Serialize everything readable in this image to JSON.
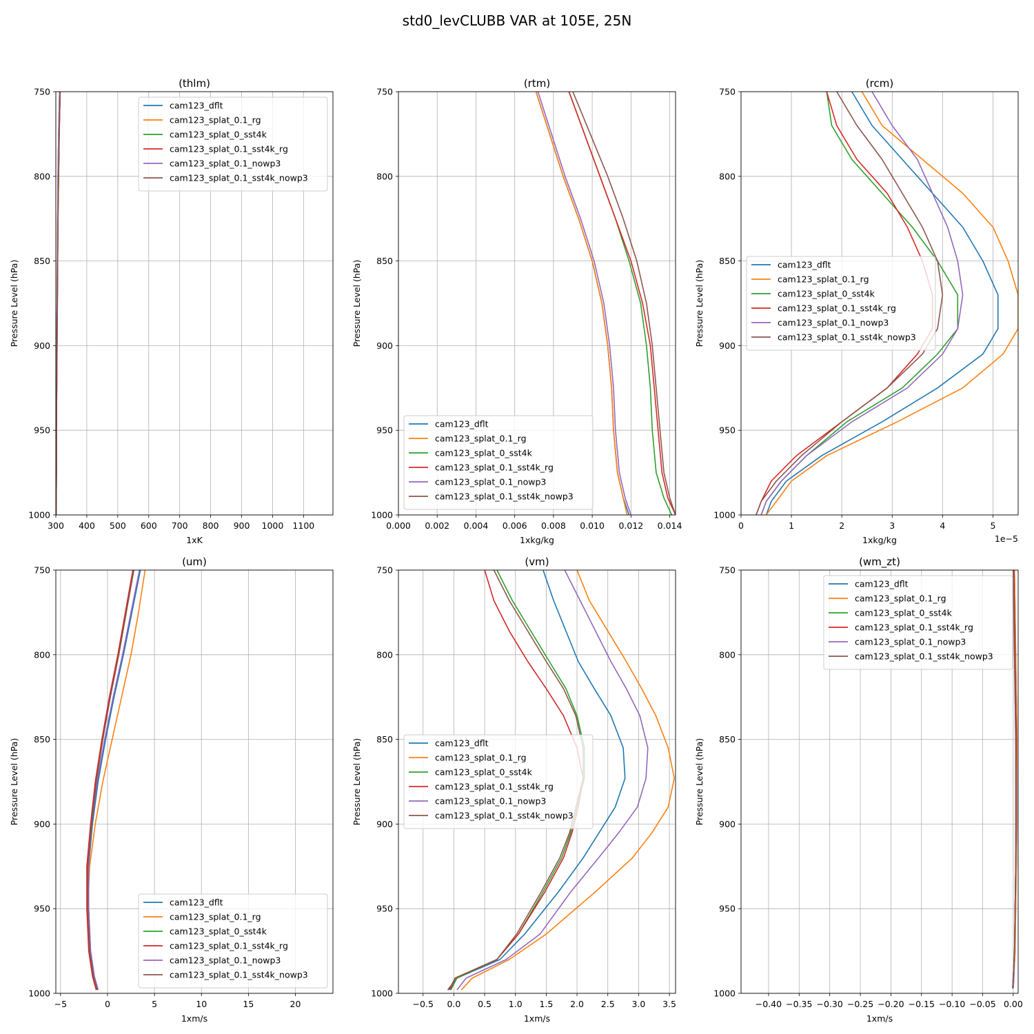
{
  "figure_title": "std0_levCLUBB VAR at 105E, 25N",
  "colors": [
    "#1f77b4",
    "#ff7f0e",
    "#2ca02c",
    "#d62728",
    "#9467bd",
    "#8c564b"
  ],
  "chart_data": [
    {
      "type": "line",
      "title": "(thlm)",
      "xlabel": "1xK",
      "ylabel": "Pressure Level (hPa)",
      "xlim": [
        300,
        1195
      ],
      "ylim": [
        1000,
        750
      ],
      "xticks": [
        300,
        400,
        500,
        600,
        700,
        800,
        900,
        1000,
        1100
      ],
      "yticks": [
        750,
        800,
        850,
        900,
        950,
        1000
      ],
      "x_offset_label": "",
      "grid": true,
      "legend": "top-right",
      "y": [
        750,
        775,
        800,
        825,
        850,
        875,
        900,
        925,
        950,
        975,
        1000
      ],
      "series": [
        {
          "name": "cam123_dflt",
          "values": [
            312,
            309,
            307,
            306,
            305,
            304,
            303,
            302,
            301,
            301,
            300
          ]
        },
        {
          "name": "cam123_splat_0.1_rg",
          "values": [
            312,
            309,
            307,
            306,
            305,
            304,
            303,
            302,
            301,
            301,
            300
          ]
        },
        {
          "name": "cam123_splat_0_sst4k",
          "values": [
            314,
            311,
            309,
            307,
            306,
            305,
            304,
            303,
            302,
            302,
            301
          ]
        },
        {
          "name": "cam123_splat_0.1_sst4k_rg",
          "values": [
            314,
            311,
            309,
            307,
            306,
            305,
            304,
            303,
            302,
            302,
            301
          ]
        },
        {
          "name": "cam123_splat_0.1_nowp3",
          "values": [
            312,
            309,
            307,
            306,
            305,
            304,
            303,
            302,
            301,
            301,
            300
          ]
        },
        {
          "name": "cam123_splat_0.1_sst4k_nowp3",
          "values": [
            314,
            311,
            309,
            307,
            306,
            305,
            304,
            303,
            302,
            302,
            301
          ]
        }
      ]
    },
    {
      "type": "line",
      "title": "(rtm)",
      "xlabel": "1xkg/kg",
      "ylabel": "Pressure Level (hPa)",
      "xlim": [
        0,
        0.0143
      ],
      "ylim": [
        1000,
        750
      ],
      "xticks": [
        0.0,
        0.002,
        0.004,
        0.006,
        0.008,
        0.01,
        0.012,
        0.014
      ],
      "xtick_labels": [
        "0.000",
        "0.002",
        "0.004",
        "0.006",
        "0.008",
        "0.010",
        "0.012",
        "0.014"
      ],
      "yticks": [
        750,
        800,
        850,
        900,
        950,
        1000
      ],
      "x_offset_label": "",
      "grid": true,
      "legend": "bottom-left",
      "y": [
        750,
        775,
        800,
        825,
        850,
        875,
        900,
        925,
        950,
        975,
        990,
        1000
      ],
      "series": [
        {
          "name": "cam123_dflt",
          "values": [
            0.0071,
            0.0078,
            0.0085,
            0.0093,
            0.01,
            0.0105,
            0.0108,
            0.011,
            0.0111,
            0.0113,
            0.0116,
            0.0119
          ]
        },
        {
          "name": "cam123_splat_0.1_rg",
          "values": [
            0.0071,
            0.0078,
            0.0085,
            0.0093,
            0.01,
            0.0105,
            0.0108,
            0.011,
            0.0111,
            0.0113,
            0.0116,
            0.0118
          ]
        },
        {
          "name": "cam123_splat_0_sst4k",
          "values": [
            0.0088,
            0.0096,
            0.0104,
            0.0112,
            0.0119,
            0.0125,
            0.0128,
            0.013,
            0.0131,
            0.0133,
            0.0137,
            0.0141
          ]
        },
        {
          "name": "cam123_splat_0.1_sst4k_rg",
          "values": [
            0.0088,
            0.0096,
            0.0104,
            0.0112,
            0.012,
            0.0126,
            0.013,
            0.0132,
            0.0134,
            0.0136,
            0.0139,
            0.0143
          ]
        },
        {
          "name": "cam123_splat_0.1_nowp3",
          "values": [
            0.0072,
            0.0079,
            0.0086,
            0.0094,
            0.0101,
            0.0106,
            0.0109,
            0.0111,
            0.0112,
            0.0114,
            0.0117,
            0.012
          ]
        },
        {
          "name": "cam123_splat_0.1_sst4k_nowp3",
          "values": [
            0.009,
            0.0099,
            0.0108,
            0.0116,
            0.0123,
            0.0128,
            0.0131,
            0.0133,
            0.0135,
            0.0137,
            0.014,
            0.0143
          ]
        }
      ]
    },
    {
      "type": "line",
      "title": "(rcm)",
      "xlabel": "1xkg/kg",
      "ylabel": "Pressure Level (hPa)",
      "xlim": [
        0,
        5.5
      ],
      "ylim": [
        1000,
        750
      ],
      "xticks": [
        0,
        1,
        2,
        3,
        4,
        5
      ],
      "yticks": [
        750,
        800,
        850,
        900,
        950,
        1000
      ],
      "x_offset_label": "1e−5",
      "grid": true,
      "legend": "center-left",
      "y": [
        750,
        770,
        790,
        810,
        830,
        850,
        870,
        890,
        905,
        925,
        945,
        965,
        980,
        992,
        1000
      ],
      "series": [
        {
          "name": "cam123_dflt",
          "values": [
            2.2,
            2.6,
            3.2,
            3.8,
            4.4,
            4.8,
            5.1,
            5.1,
            4.8,
            3.9,
            2.8,
            1.6,
            0.9,
            0.6,
            0.5
          ]
        },
        {
          "name": "cam123_splat_0.1_rg",
          "values": [
            2.4,
            2.8,
            3.6,
            4.4,
            5.0,
            5.3,
            5.5,
            5.5,
            5.2,
            4.4,
            3.1,
            1.7,
            1.0,
            0.7,
            0.5
          ]
        },
        {
          "name": "cam123_splat_0_sst4k",
          "values": [
            1.7,
            1.8,
            2.2,
            2.8,
            3.4,
            3.9,
            4.3,
            4.3,
            3.9,
            3.2,
            2.1,
            1.3,
            0.8,
            0.5,
            0.4
          ]
        },
        {
          "name": "cam123_splat_0.1_sst4k_rg",
          "values": [
            1.7,
            1.9,
            2.3,
            2.9,
            3.3,
            3.6,
            3.8,
            3.8,
            3.5,
            2.9,
            2.0,
            1.1,
            0.6,
            0.4,
            0.3
          ]
        },
        {
          "name": "cam123_splat_0.1_nowp3",
          "values": [
            2.6,
            3.0,
            3.5,
            3.8,
            4.1,
            4.3,
            4.4,
            4.3,
            4.0,
            3.3,
            2.2,
            1.3,
            0.8,
            0.5,
            0.4
          ]
        },
        {
          "name": "cam123_splat_0.1_sst4k_nowp3",
          "values": [
            1.9,
            2.3,
            2.8,
            3.2,
            3.6,
            3.9,
            4.0,
            3.9,
            3.6,
            2.9,
            2.0,
            1.2,
            0.7,
            0.4,
            0.3
          ]
        }
      ]
    },
    {
      "type": "line",
      "title": "(um)",
      "xlabel": "1xm/s",
      "ylabel": "Pressure Level (hPa)",
      "xlim": [
        -5.5,
        24
      ],
      "ylim": [
        1000,
        750
      ],
      "xticks": [
        -5,
        0,
        5,
        10,
        15,
        20
      ],
      "yticks": [
        750,
        800,
        850,
        900,
        950,
        1000
      ],
      "x_offset_label": "",
      "grid": true,
      "legend": "bottom-right",
      "y": [
        750,
        775,
        800,
        825,
        850,
        875,
        900,
        925,
        950,
        975,
        990,
        998
      ],
      "series": [
        {
          "name": "cam123_dflt",
          "values": [
            3.5,
            2.6,
            1.7,
            0.7,
            -0.2,
            -1.0,
            -1.6,
            -2.0,
            -2.0,
            -1.8,
            -1.4,
            -1.0
          ]
        },
        {
          "name": "cam123_splat_0.1_rg",
          "values": [
            4.0,
            3.3,
            2.5,
            1.5,
            0.5,
            -0.5,
            -1.3,
            -1.9,
            -2.1,
            -1.9,
            -1.5,
            -1.1
          ]
        },
        {
          "name": "cam123_splat_0_sst4k",
          "values": [
            2.8,
            2.0,
            1.2,
            0.3,
            -0.5,
            -1.2,
            -1.7,
            -2.1,
            -2.1,
            -1.9,
            -1.5,
            -1.1
          ]
        },
        {
          "name": "cam123_splat_0.1_sst4k_rg",
          "values": [
            2.7,
            1.9,
            1.1,
            0.2,
            -0.6,
            -1.3,
            -1.8,
            -2.2,
            -2.2,
            -2.0,
            -1.6,
            -1.2
          ]
        },
        {
          "name": "cam123_splat_0.1_nowp3",
          "values": [
            3.4,
            2.5,
            1.6,
            0.6,
            -0.3,
            -1.1,
            -1.7,
            -2.0,
            -2.0,
            -1.8,
            -1.4,
            -1.0
          ]
        },
        {
          "name": "cam123_splat_0.1_sst4k_nowp3",
          "values": [
            2.8,
            2.0,
            1.2,
            0.3,
            -0.5,
            -1.2,
            -1.7,
            -2.1,
            -2.1,
            -1.9,
            -1.5,
            -1.1
          ]
        }
      ]
    },
    {
      "type": "line",
      "title": "(vm)",
      "xlabel": "1xm/s",
      "ylabel": "Pressure Level (hPa)",
      "xlim": [
        -0.9,
        3.6
      ],
      "ylim": [
        1000,
        750
      ],
      "xticks": [
        -0.5,
        0.0,
        0.5,
        1.0,
        1.5,
        2.0,
        2.5,
        3.0,
        3.5
      ],
      "xtick_labels": [
        "−0.5",
        "0.0",
        "0.5",
        "1.0",
        "1.5",
        "2.0",
        "2.5",
        "3.0",
        "3.5"
      ],
      "yticks": [
        750,
        800,
        850,
        900,
        950,
        1000
      ],
      "x_offset_label": "",
      "grid": true,
      "legend": "center-left",
      "y": [
        750,
        768,
        786,
        804,
        820,
        836,
        855,
        873,
        890,
        905,
        920,
        940,
        965,
        980,
        991,
        998
      ],
      "series": [
        {
          "name": "cam123_dflt",
          "values": [
            1.45,
            1.62,
            1.82,
            2.02,
            2.28,
            2.55,
            2.75,
            2.78,
            2.62,
            2.36,
            2.1,
            1.7,
            1.15,
            0.75,
            0.05,
            -0.1
          ]
        },
        {
          "name": "cam123_splat_0.1_rg",
          "values": [
            2.0,
            2.2,
            2.5,
            2.8,
            3.05,
            3.28,
            3.48,
            3.58,
            3.48,
            3.22,
            2.9,
            2.3,
            1.5,
            0.9,
            0.3,
            0.12
          ]
        },
        {
          "name": "cam123_splat_0_sst4k",
          "values": [
            0.7,
            0.95,
            1.25,
            1.55,
            1.82,
            2.0,
            2.12,
            2.12,
            2.0,
            1.9,
            1.75,
            1.45,
            1.05,
            0.7,
            0.05,
            -0.05
          ]
        },
        {
          "name": "cam123_splat_0.1_sst4k_rg",
          "values": [
            0.5,
            0.65,
            0.9,
            1.2,
            1.5,
            1.78,
            2.0,
            2.1,
            2.02,
            1.92,
            1.78,
            1.48,
            1.05,
            0.7,
            0.02,
            -0.08
          ]
        },
        {
          "name": "cam123_splat_0.1_nowp3",
          "values": [
            1.8,
            2.05,
            2.3,
            2.55,
            2.8,
            3.02,
            3.15,
            3.12,
            2.98,
            2.68,
            2.35,
            1.9,
            1.4,
            0.85,
            0.2,
            0.05
          ]
        },
        {
          "name": "cam123_splat_0.1_sst4k_nowp3",
          "values": [
            0.65,
            0.9,
            1.2,
            1.5,
            1.78,
            1.98,
            2.1,
            2.1,
            1.98,
            1.88,
            1.72,
            1.42,
            1.02,
            0.7,
            0.02,
            -0.06
          ]
        }
      ]
    },
    {
      "type": "line",
      "title": "(wm_zt)",
      "xlabel": "1xm/s",
      "ylabel": "Pressure Level (hPa)",
      "xlim": [
        -0.445,
        0.008
      ],
      "ylim": [
        1000,
        750
      ],
      "xticks": [
        -0.4,
        -0.35,
        -0.3,
        -0.25,
        -0.2,
        -0.15,
        -0.1,
        -0.05,
        0.0
      ],
      "xtick_labels": [
        "−0.40",
        "−0.35",
        "−0.30",
        "−0.25",
        "−0.20",
        "−0.15",
        "−0.10",
        "−0.05",
        "0.00"
      ],
      "yticks": [
        750,
        800,
        850,
        900,
        950,
        1000
      ],
      "x_offset_label": "",
      "grid": true,
      "legend": "top-right",
      "y": [
        750,
        775,
        800,
        825,
        850,
        875,
        900,
        925,
        950,
        975,
        990,
        997
      ],
      "series": [
        {
          "name": "cam123_dflt",
          "values": [
            0.002,
            0.003,
            0.004,
            0.005,
            0.006,
            0.006,
            0.006,
            0.005,
            0.004,
            0.003,
            0.001,
            0.0
          ]
        },
        {
          "name": "cam123_splat_0.1_rg",
          "values": [
            0.002,
            0.003,
            0.004,
            0.005,
            0.006,
            0.006,
            0.006,
            0.005,
            0.004,
            0.003,
            0.001,
            0.0
          ]
        },
        {
          "name": "cam123_splat_0_sst4k",
          "values": [
            0.001,
            0.002,
            0.003,
            0.004,
            0.005,
            0.005,
            0.005,
            0.004,
            0.003,
            0.002,
            0.0,
            -0.001
          ]
        },
        {
          "name": "cam123_splat_0.1_sst4k_rg",
          "values": [
            0.001,
            0.002,
            0.003,
            0.004,
            0.005,
            0.005,
            0.005,
            0.004,
            0.003,
            0.002,
            0.0,
            -0.001
          ]
        },
        {
          "name": "cam123_splat_0.1_nowp3",
          "values": [
            0.0,
            0.001,
            0.002,
            0.003,
            0.004,
            0.005,
            0.005,
            0.004,
            0.003,
            0.002,
            0.001,
            0.0
          ]
        },
        {
          "name": "cam123_splat_0.1_sst4k_nowp3",
          "values": [
            0.0,
            0.001,
            0.002,
            0.003,
            0.004,
            0.004,
            0.004,
            0.004,
            0.003,
            0.002,
            0.0,
            -0.001
          ]
        }
      ]
    }
  ]
}
